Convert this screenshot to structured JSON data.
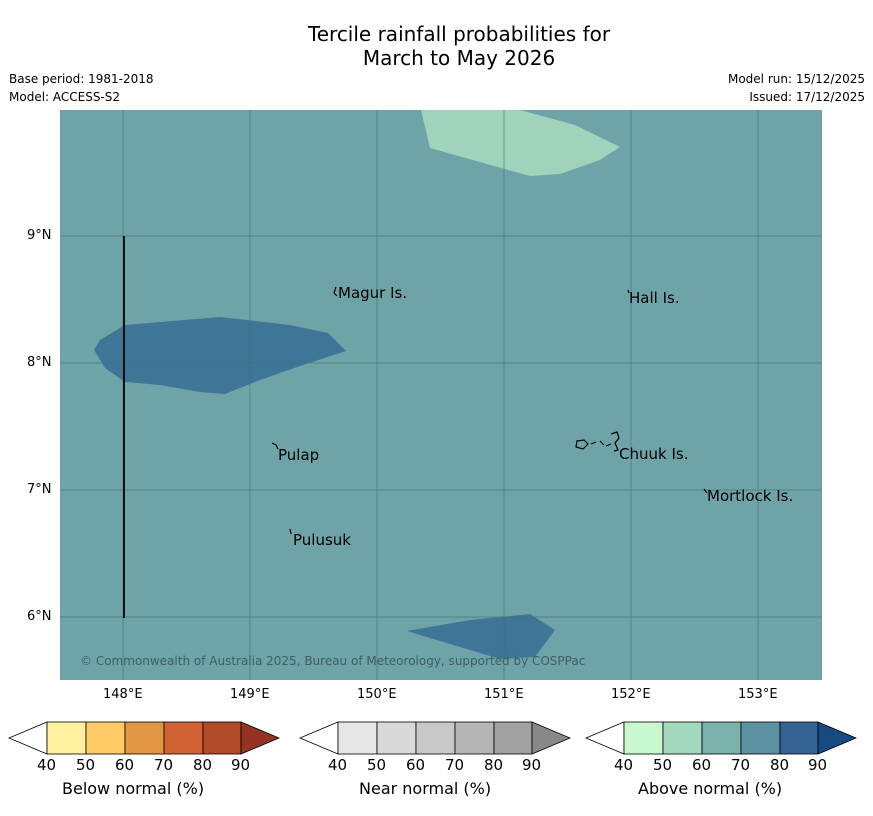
{
  "header": {
    "title_line1": "Tercile rainfall probabilities for",
    "title_line2": "March to May 2026",
    "base_period": "Base period: 1981-2018",
    "model": "Model: ACCESS-S2",
    "model_run": "Model run: 15/12/2025",
    "issued": "Issued: 17/12/2025"
  },
  "map": {
    "copyright": "© Commonwealth of Australia 2025, Bureau of Meteorology, supported by COSPPac",
    "background_color": "#6ea4a8",
    "lat_ticks": [
      "9°N",
      "8°N",
      "7°N",
      "6°N"
    ],
    "lon_ticks": [
      "148°E",
      "149°E",
      "150°E",
      "151°E",
      "152°E",
      "153°E"
    ],
    "places": [
      {
        "name": "Magur Is."
      },
      {
        "name": "Hall Is."
      },
      {
        "name": "Pulap"
      },
      {
        "name": "Chuuk Is."
      },
      {
        "name": "Mortlock Is."
      },
      {
        "name": "Pulusuk"
      }
    ]
  },
  "legend": {
    "below": {
      "label": "Below normal (%)",
      "colors": [
        "#fff0a0",
        "#fdcc66",
        "#e39546",
        "#d06233",
        "#b24b27",
        "#933322"
      ],
      "ticks": [
        "40",
        "50",
        "60",
        "70",
        "80",
        "90"
      ]
    },
    "near": {
      "label": "Near normal (%)",
      "colors": [
        "#e6e6e6",
        "#d9d9d9",
        "#c8c8c8",
        "#b5b5b5",
        "#a0a0a0",
        "#888888"
      ],
      "ticks": [
        "40",
        "50",
        "60",
        "70",
        "80",
        "90"
      ]
    },
    "above": {
      "label": "Above normal (%)",
      "colors": [
        "#c9f7ce",
        "#a3d7be",
        "#7ab2a9",
        "#5b91a0",
        "#336494",
        "#164a80"
      ],
      "ticks": [
        "40",
        "50",
        "60",
        "70",
        "80",
        "90"
      ]
    }
  }
}
